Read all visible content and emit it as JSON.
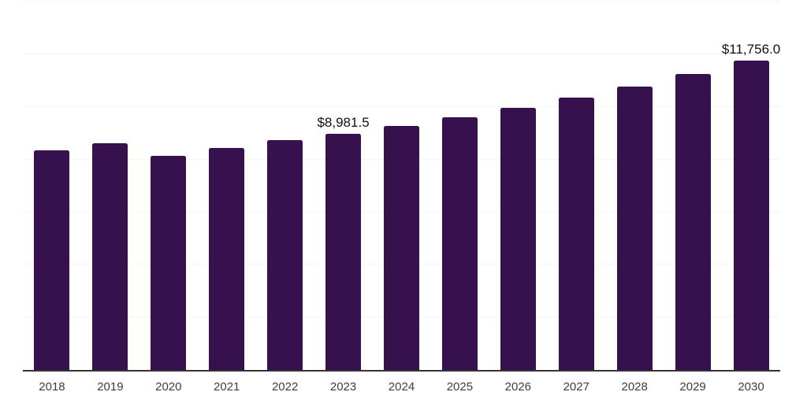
{
  "chart_data": {
    "type": "bar",
    "title": "",
    "xlabel": "",
    "ylabel": "",
    "categories": [
      "2018",
      "2019",
      "2020",
      "2021",
      "2022",
      "2023",
      "2024",
      "2025",
      "2026",
      "2027",
      "2028",
      "2029",
      "2030"
    ],
    "values": [
      8350,
      8620,
      8150,
      8440,
      8730,
      8981.5,
      9270,
      9600,
      9950,
      10360,
      10760,
      11240,
      11756
    ],
    "data_labels": [
      "",
      "",
      "",
      "",
      "",
      "$8,981.5",
      "",
      "",
      "",
      "",
      "",
      "",
      "$11,756.0"
    ],
    "ylim": [
      0,
      14000
    ],
    "grid_step": 2000,
    "grid": "horizontal-only",
    "legend_position": "none",
    "colors": {
      "bar": "#36114d",
      "axis_line": "#333333",
      "gridline": "#f4f4f5",
      "tick_label": "#3d3d3d",
      "data_label": "#111111",
      "background": "#ffffff"
    }
  }
}
